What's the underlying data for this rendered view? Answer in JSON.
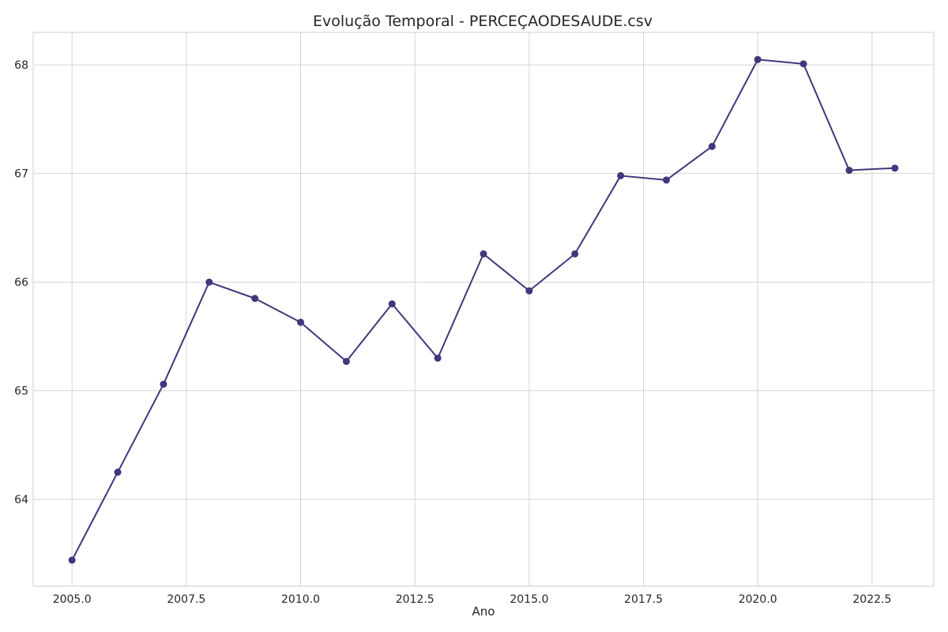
{
  "chart_data": {
    "type": "line",
    "title": "Evolução Temporal - PERCEÇAODESAUDE.csv",
    "xlabel": "Ano",
    "ylabel": "",
    "xlim": [
      2004.15,
      2023.85
    ],
    "ylim": [
      63.2,
      68.3
    ],
    "x_ticks": [
      "2005.0",
      "2007.5",
      "2010.0",
      "2012.5",
      "2015.0",
      "2017.5",
      "2020.0",
      "2022.5"
    ],
    "y_ticks": [
      "64",
      "65",
      "66",
      "67",
      "68"
    ],
    "grid": true,
    "series": [
      {
        "color": "#44357c",
        "x": [
          2005,
          2006,
          2007,
          2008,
          2009,
          2010,
          2011,
          2012,
          2013,
          2014,
          2015,
          2016,
          2017,
          2018,
          2019,
          2020,
          2021,
          2022,
          2023
        ],
        "y": [
          63.44,
          64.25,
          65.06,
          66.0,
          65.85,
          65.63,
          65.27,
          65.8,
          65.3,
          66.26,
          65.92,
          66.26,
          66.98,
          66.94,
          67.25,
          68.05,
          68.01,
          67.03,
          67.05
        ]
      }
    ]
  }
}
